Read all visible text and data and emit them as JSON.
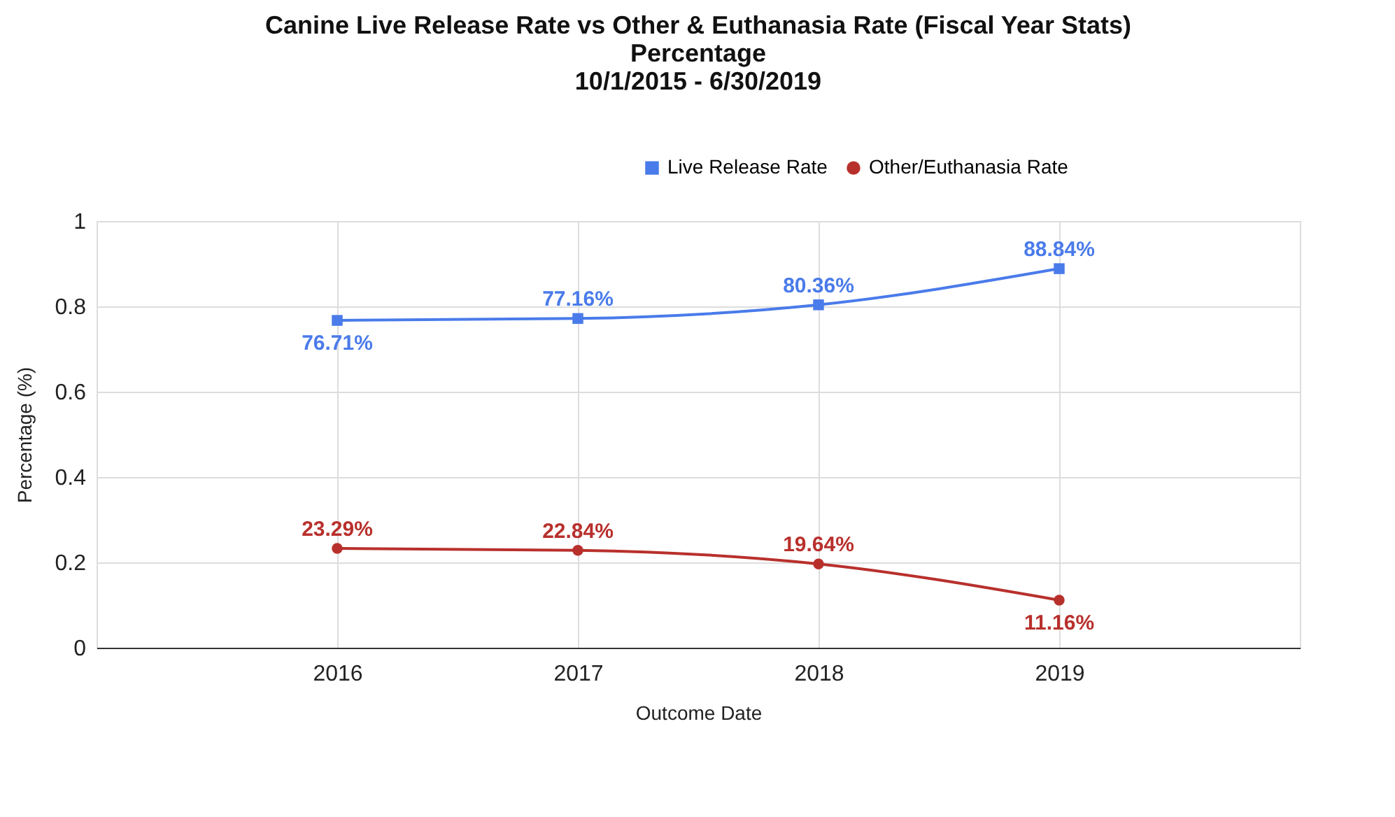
{
  "chart_data": {
    "type": "line",
    "title": "Canine Live Release Rate vs Other & Euthanasia Rate (Fiscal Year Stats)\nPercentage\n10/1/2015 - 6/30/2019",
    "xlabel": "Outcome Date",
    "ylabel": "Percentage (%)",
    "x": [
      2016,
      2017,
      2018,
      2019
    ],
    "xlim": [
      2015,
      2020
    ],
    "xticks": [
      2016,
      2017,
      2018,
      2019
    ],
    "ylim": [
      0,
      1
    ],
    "yticks": [
      0,
      0.2,
      0.4,
      0.6,
      0.8,
      1
    ],
    "grid": true,
    "legend": "top right",
    "series": [
      {
        "name": "Live Release Rate",
        "color": "#4a7bea",
        "marker": "square",
        "values": [
          0.7671,
          0.7716,
          0.8036,
          0.8884
        ],
        "value_labels": [
          "76.71%",
          "77.16%",
          "80.36%",
          "88.84%"
        ]
      },
      {
        "name": "Other/Euthanasia Rate",
        "color": "#b8302c",
        "marker": "circle",
        "values": [
          0.2329,
          0.2284,
          0.1964,
          0.1116
        ],
        "value_labels": [
          "23.29%",
          "22.84%",
          "19.64%",
          "11.16%"
        ]
      }
    ]
  }
}
